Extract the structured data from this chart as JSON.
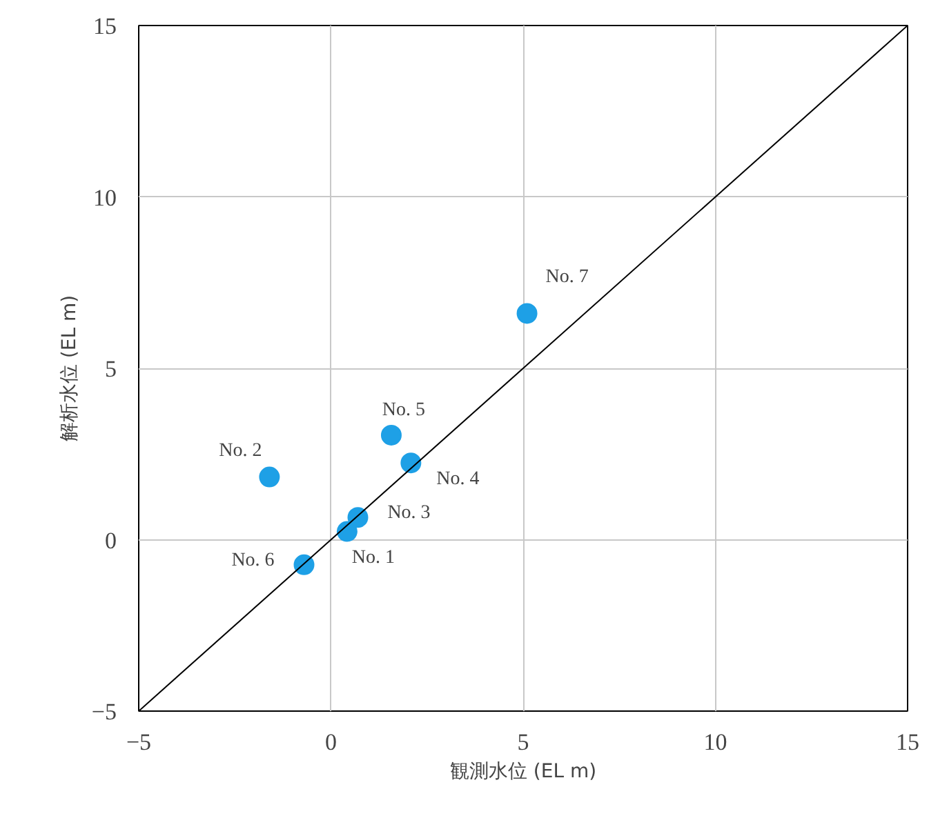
{
  "chart_data": {
    "type": "scatter",
    "xlabel": "観測水位 (EL m)",
    "ylabel": "解析水位 (EL m)",
    "xlim": [
      -5,
      15
    ],
    "ylim": [
      -5,
      15
    ],
    "xticks": [
      -5,
      0,
      5,
      10,
      15
    ],
    "yticks": [
      -5,
      0,
      5,
      10,
      15
    ],
    "grid": true,
    "series": [
      {
        "marker": "circle",
        "color": "#1ea0e6",
        "x": [
          0.42,
          -1.6,
          0.7,
          2.08,
          1.57,
          -0.7,
          5.1
        ],
        "values": [
          0.24,
          1.83,
          0.65,
          2.24,
          3.05,
          -0.73,
          6.6
        ]
      },
      {
        "type": "line",
        "color": "#000000",
        "x": [
          -5,
          15
        ],
        "values": [
          -5,
          15
        ]
      }
    ],
    "annotations": [
      {
        "text": "No. 1",
        "x": 0.42,
        "y": 0.24
      },
      {
        "text": "No. 2",
        "x": -1.6,
        "y": 1.83
      },
      {
        "text": "No. 3",
        "x": 0.7,
        "y": 0.65
      },
      {
        "text": "No. 4",
        "x": 2.08,
        "y": 2.24
      },
      {
        "text": "No. 5",
        "x": 1.57,
        "y": 3.05
      },
      {
        "text": "No. 6",
        "x": -0.7,
        "y": -0.73
      },
      {
        "text": "No. 7",
        "x": 5.1,
        "y": 6.6
      }
    ]
  }
}
